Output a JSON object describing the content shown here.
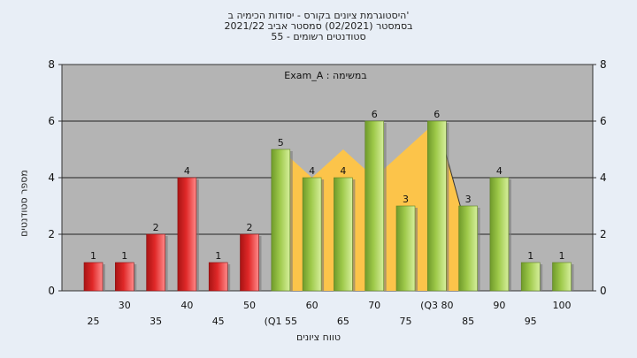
{
  "chart_data": {
    "type": "bar",
    "title_lines": [
      "היסטוגרמת ציונים בקורס - יסודות הכימיה ב'",
      "בסמסטר  (02/2021)  סמסטר אביב 2021/22",
      "סטודנטים רשומים - 55"
    ],
    "ylabel": "מספר סטודנטים",
    "xlabel": "טווח ציונים",
    "annotation": "במשימה : Exam_A",
    "ylim": [
      0,
      8
    ],
    "yticks": [
      0,
      2,
      4,
      6,
      8
    ],
    "grid": true,
    "categories": [
      "25",
      "30",
      "35",
      "40",
      "45",
      "50",
      "(Q1 55",
      "60",
      "65",
      "70",
      "75",
      "(Q3 80",
      "85",
      "90",
      "95",
      "100"
    ],
    "values": [
      1,
      1,
      2,
      4,
      1,
      2,
      5,
      4,
      4,
      6,
      3,
      6,
      3,
      4,
      1,
      1
    ],
    "bar_colors": [
      "red",
      "red",
      "red",
      "red",
      "red",
      "red",
      "green",
      "green",
      "green",
      "green",
      "green",
      "green",
      "green",
      "green",
      "green",
      "green"
    ],
    "distribution_curve": [
      {
        "x": "(Q1 55",
        "y": 5
      },
      {
        "x": "60",
        "y": 4
      },
      {
        "x": "65",
        "y": 5
      },
      {
        "x": "70",
        "y": 4
      },
      {
        "x": "75",
        "y": 5
      },
      {
        "x": "(Q3 80",
        "y": 6
      },
      {
        "x": "85",
        "y": 2
      }
    ],
    "colors": {
      "plot_bg": "#b4b4b4",
      "grid": "#222222",
      "red_bar": "#e02828",
      "green_bar": "#9ec94a",
      "area_fill": "#fcc44a"
    }
  }
}
